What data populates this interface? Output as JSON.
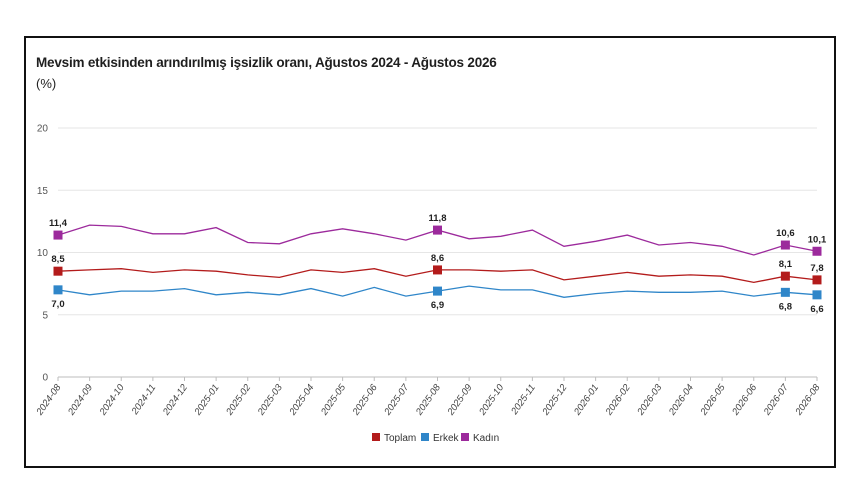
{
  "chart_data": {
    "type": "line",
    "title": "Mevsim etkisinden arındırılmış işsizlik oranı, Ağustos 2024 - Ağustos 2026",
    "subtitle": "(%)",
    "ylim": [
      0,
      20
    ],
    "yticks": [
      0,
      5,
      10,
      15,
      20
    ],
    "grid": true,
    "legend_position": "bottom-center",
    "x": [
      "2024-08",
      "2024-09",
      "2024-10",
      "2024-11",
      "2024-12",
      "2025-01",
      "2025-02",
      "2025-03",
      "2025-04",
      "2025-05",
      "2025-06",
      "2025-07",
      "2025-08",
      "2025-09",
      "2025-10",
      "2025-11",
      "2025-12",
      "2026-01",
      "2026-02",
      "2026-03",
      "2026-04",
      "2026-05",
      "2026-06",
      "2026-07",
      "2026-08"
    ],
    "series": [
      {
        "name": "Toplam",
        "color": "#b31b1b",
        "values": [
          8.5,
          8.6,
          8.7,
          8.4,
          8.6,
          8.5,
          8.2,
          8.0,
          8.6,
          8.4,
          8.7,
          8.1,
          8.6,
          8.6,
          8.5,
          8.6,
          7.8,
          8.1,
          8.4,
          8.1,
          8.2,
          8.1,
          7.6,
          8.1,
          7.8
        ],
        "labels": [
          {
            "index": 0,
            "text": "8,5"
          },
          {
            "index": 12,
            "text": "8,6"
          },
          {
            "index": 23,
            "text": "8,1"
          },
          {
            "index": 24,
            "text": "7,8"
          }
        ]
      },
      {
        "name": "Erkek",
        "color": "#2f86c9",
        "values": [
          7.0,
          6.6,
          6.9,
          6.9,
          7.1,
          6.6,
          6.8,
          6.6,
          7.1,
          6.5,
          7.2,
          6.5,
          6.9,
          7.3,
          7.0,
          7.0,
          6.4,
          6.7,
          6.9,
          6.8,
          6.8,
          6.9,
          6.5,
          6.8,
          6.6
        ],
        "labels": [
          {
            "index": 0,
            "text": "7,0"
          },
          {
            "index": 12,
            "text": "6,9"
          },
          {
            "index": 23,
            "text": "6,8"
          },
          {
            "index": 24,
            "text": "6,6"
          }
        ]
      },
      {
        "name": "Kadın",
        "color": "#9c2a9c",
        "values": [
          11.4,
          12.2,
          12.1,
          11.5,
          11.5,
          12.0,
          10.8,
          10.7,
          11.5,
          11.9,
          11.5,
          11.0,
          11.8,
          11.1,
          11.3,
          11.8,
          10.5,
          10.9,
          11.4,
          10.6,
          10.8,
          10.5,
          9.8,
          10.6,
          10.1
        ],
        "labels": [
          {
            "index": 0,
            "text": "11,4"
          },
          {
            "index": 12,
            "text": "11,8"
          },
          {
            "index": 23,
            "text": "10,6"
          },
          {
            "index": 24,
            "text": "10,1"
          }
        ]
      }
    ]
  }
}
